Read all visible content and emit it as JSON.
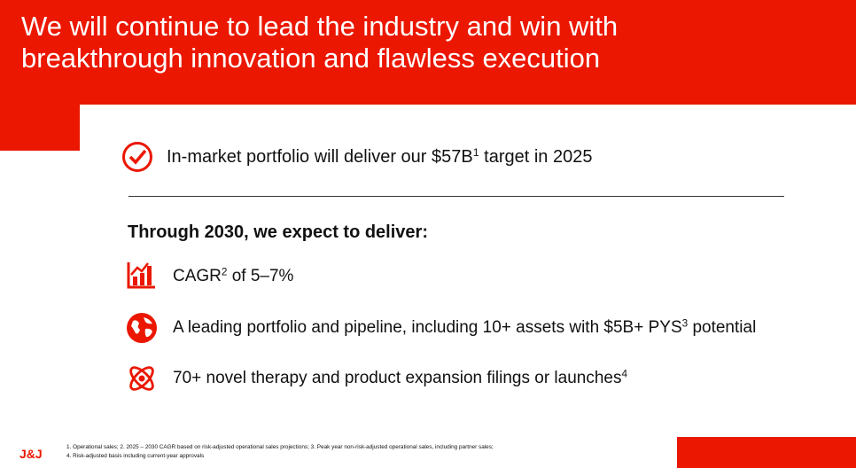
{
  "header": {
    "title": [
      "We will continue to lead the industry and win with",
      "breakthrough innovation and flawless execution"
    ]
  },
  "headline": {
    "before": "In-market portfolio will deliver our $57B",
    "sup": "1",
    "after": " target in 2025"
  },
  "subheading": "Through 2030, we expect to deliver:",
  "items": [
    {
      "before": "CAGR",
      "sup": "2",
      "after": " of 5–7%"
    },
    {
      "before": "A leading portfolio and pipeline, including 10+ assets with $5B+ PYS",
      "sup": "3",
      "after": " potential"
    },
    {
      "before": "70+ novel therapy and product expansion filings or launches",
      "sup": "4"
    }
  ],
  "footer": {
    "logo": "J&J",
    "footnotes": [
      "1. Operational sales; 2. 2025 – 2030 CAGR based on risk-adjusted operational sales projections; 3. Peak year non-risk-adjusted operational sales, including partner sales;",
      "4. Risk-adjusted basis including current-year approvals"
    ]
  }
}
